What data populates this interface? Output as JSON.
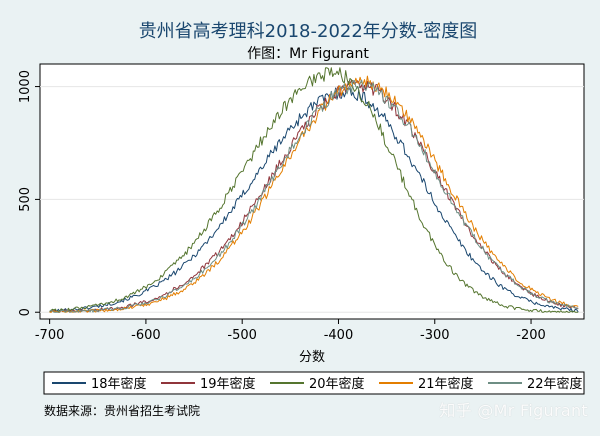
{
  "chart_data": {
    "type": "line",
    "title": "贵州省高考理科2018-2022年分数-密度图",
    "subtitle": "作图：Mr Figurant",
    "xlabel": "分数",
    "ylabel": "",
    "xlim": [
      -710,
      -145
    ],
    "ylim": [
      -30,
      1100
    ],
    "xticks": [
      -700,
      -600,
      -500,
      -400,
      -300,
      -200
    ],
    "xtick_labels": [
      "-700",
      "-600",
      "-500",
      "-400",
      "-300",
      "-200"
    ],
    "yticks": [
      0,
      500,
      1000
    ],
    "ytick_labels": [
      "0",
      "500",
      "1000"
    ],
    "grid": true,
    "legend_position": "bottom",
    "series": [
      {
        "name": "18年密度",
        "color": "#1a476f",
        "peak_x": -392,
        "peak_y": 975,
        "sigma_left": 96,
        "sigma_right": 78
      },
      {
        "name": "19年密度",
        "color": "#90353b",
        "peak_x": -378,
        "peak_y": 1005,
        "sigma_left": 90,
        "sigma_right": 80
      },
      {
        "name": "20年密度",
        "color": "#55752f",
        "peak_x": -405,
        "peak_y": 1060,
        "sigma_left": 92,
        "sigma_right": 66
      },
      {
        "name": "21年密度",
        "color": "#e37e00",
        "peak_x": -374,
        "peak_y": 1020,
        "sigma_left": 87,
        "sigma_right": 81
      },
      {
        "name": "22年密度",
        "color": "#6e8e84",
        "peak_x": -378,
        "peak_y": 1005,
        "sigma_left": 88,
        "sigma_right": 80
      }
    ],
    "source_note": "数据来源：贵州省招生考试院"
  },
  "watermark": "知乎 @Mr Figurant"
}
